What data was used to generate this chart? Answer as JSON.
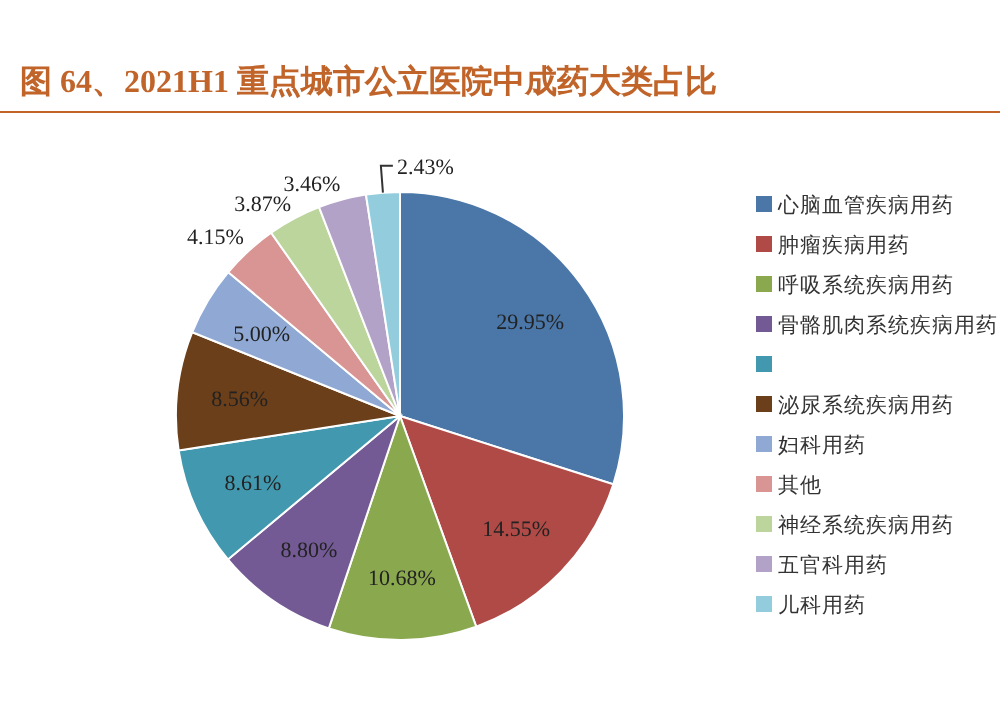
{
  "chart_data": {
    "type": "pie",
    "title": "图 64、2021H1 重点城市公立医院中成药大类占比",
    "categories": [
      "心脑血管疾病用药",
      "肿瘤疾病用药",
      "呼吸系统疾病用药",
      "骨骼肌肉系统疾病用药",
      null,
      "泌尿系统疾病用药",
      "妇科用药",
      "其他",
      "神经系统疾病用药",
      "五官科用药",
      "儿科用药"
    ],
    "values": [
      29.95,
      14.55,
      10.68,
      8.8,
      8.61,
      8.56,
      5.0,
      4.15,
      3.87,
      3.46,
      2.43
    ],
    "value_labels": [
      "29.95%",
      "14.55%",
      "10.68%",
      "8.80%",
      "8.61%",
      "8.56%",
      "5.00%",
      "4.15%",
      "3.87%",
      "3.46%",
      "2.43%"
    ],
    "colors": [
      "#4a76a8",
      "#b04a46",
      "#8aa84e",
      "#735a94",
      "#4298ae",
      "#6b3f1a",
      "#8fa9d4",
      "#d99594",
      "#bcd59c",
      "#b3a2c7",
      "#93cddd"
    ],
    "legend": "right"
  }
}
